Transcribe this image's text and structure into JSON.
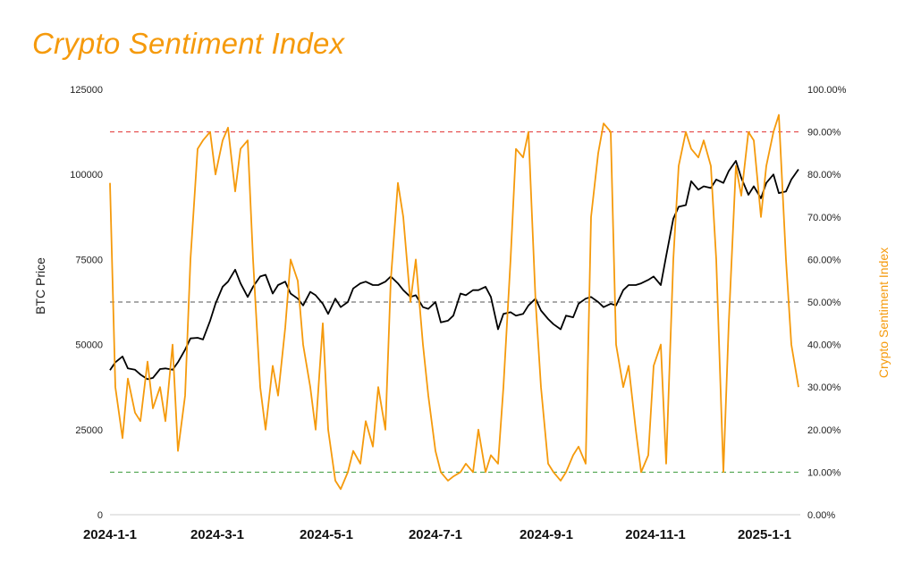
{
  "chart_data": {
    "type": "line",
    "title": "Crypto Sentiment Index",
    "ylabel_left": "BTC Price",
    "ylabel_right": "Crypto Sentiment Index",
    "ylim_left": [
      0,
      125000
    ],
    "ylim_right": [
      0,
      100
    ],
    "x_range": [
      "2024-01-01",
      "2025-01-21"
    ],
    "y_ticks_left": [
      "0",
      "25000",
      "50000",
      "75000",
      "100000",
      "125000"
    ],
    "y_ticks_right": [
      "0.00%",
      "10.00%",
      "20.00%",
      "30.00%",
      "40.00%",
      "50.00%",
      "60.00%",
      "70.00%",
      "80.00%",
      "90.00%",
      "100.00%"
    ],
    "x_ticks": [
      "2024-1-1",
      "2024-3-1",
      "2024-5-1",
      "2024-7-1",
      "2024-9-1",
      "2024-11-1",
      "2025-1-1"
    ],
    "colors": {
      "price": "#000000",
      "sentiment": "#f59a0c",
      "upper_ref": "#e03030",
      "mid_ref": "#555555",
      "lower_ref": "#3a9a3a"
    },
    "reference_lines_percent": [
      90,
      50,
      10
    ],
    "grid": false,
    "series": [
      {
        "axis": "left",
        "dates": [
          "2024-01-01",
          "2024-01-04",
          "2024-01-08",
          "2024-01-11",
          "2024-01-15",
          "2024-01-18",
          "2024-01-22",
          "2024-01-25",
          "2024-01-29",
          "2024-02-01",
          "2024-02-05",
          "2024-02-08",
          "2024-02-12",
          "2024-02-15",
          "2024-02-19",
          "2024-02-22",
          "2024-02-26",
          "2024-02-29",
          "2024-03-04",
          "2024-03-07",
          "2024-03-11",
          "2024-03-14",
          "2024-03-18",
          "2024-03-21",
          "2024-03-25",
          "2024-03-28",
          "2024-04-01",
          "2024-04-04",
          "2024-04-08",
          "2024-04-11",
          "2024-04-15",
          "2024-04-18",
          "2024-04-22",
          "2024-04-25",
          "2024-04-29",
          "2024-05-02",
          "2024-05-06",
          "2024-05-09",
          "2024-05-13",
          "2024-05-16",
          "2024-05-20",
          "2024-05-23",
          "2024-05-27",
          "2024-05-30",
          "2024-06-03",
          "2024-06-06",
          "2024-06-10",
          "2024-06-13",
          "2024-06-17",
          "2024-06-20",
          "2024-06-24",
          "2024-06-27",
          "2024-07-01",
          "2024-07-04",
          "2024-07-08",
          "2024-07-11",
          "2024-07-15",
          "2024-07-18",
          "2024-07-22",
          "2024-07-25",
          "2024-07-29",
          "2024-08-01",
          "2024-08-05",
          "2024-08-08",
          "2024-08-12",
          "2024-08-15",
          "2024-08-19",
          "2024-08-22",
          "2024-08-26",
          "2024-08-29",
          "2024-09-02",
          "2024-09-05",
          "2024-09-09",
          "2024-09-12",
          "2024-09-16",
          "2024-09-19",
          "2024-09-23",
          "2024-09-26",
          "2024-09-30",
          "2024-10-03",
          "2024-10-07",
          "2024-10-10",
          "2024-10-14",
          "2024-10-17",
          "2024-10-21",
          "2024-10-24",
          "2024-10-28",
          "2024-10-31",
          "2024-11-04",
          "2024-11-07",
          "2024-11-11",
          "2024-11-14",
          "2024-11-18",
          "2024-11-21",
          "2024-11-25",
          "2024-11-28",
          "2024-12-02",
          "2024-12-05",
          "2024-12-09",
          "2024-12-12",
          "2024-12-16",
          "2024-12-19",
          "2024-12-23",
          "2024-12-26",
          "2024-12-30",
          "2025-01-02",
          "2025-01-06",
          "2025-01-09",
          "2025-01-13",
          "2025-01-16",
          "2025-01-20"
        ],
        "values": [
          42500,
          44800,
          46500,
          43000,
          42600,
          41200,
          39800,
          40200,
          42800,
          43000,
          42600,
          44800,
          48500,
          51800,
          52000,
          51500,
          57000,
          62000,
          67000,
          68500,
          72000,
          68000,
          64000,
          67000,
          70000,
          70500,
          65000,
          67500,
          68500,
          65000,
          63500,
          61500,
          65500,
          64500,
          62000,
          59000,
          63500,
          61000,
          62500,
          66500,
          68000,
          68500,
          67500,
          67500,
          68500,
          70000,
          68000,
          66000,
          64000,
          64500,
          61000,
          60500,
          62500,
          56500,
          57000,
          58500,
          65000,
          64500,
          66000,
          66000,
          67000,
          64000,
          54500,
          59000,
          59500,
          58500,
          59000,
          61500,
          63500,
          60000,
          57500,
          56000,
          54500,
          58500,
          58000,
          62000,
          63500,
          64000,
          62500,
          61000,
          62000,
          61500,
          66000,
          67500,
          67500,
          68000,
          69000,
          70000,
          67500,
          76000,
          87000,
          90500,
          91000,
          98000,
          95500,
          96500,
          96000,
          98500,
          97500,
          101000,
          104000,
          99000,
          94000,
          96500,
          93000,
          97500,
          100000,
          94500,
          95000,
          98500,
          101500
        ]
      },
      {
        "axis": "right",
        "unit": "percent",
        "dates": [
          "2024-01-01",
          "2024-01-04",
          "2024-01-08",
          "2024-01-11",
          "2024-01-15",
          "2024-01-18",
          "2024-01-22",
          "2024-01-25",
          "2024-01-29",
          "2024-02-01",
          "2024-02-05",
          "2024-02-08",
          "2024-02-12",
          "2024-02-15",
          "2024-02-19",
          "2024-02-22",
          "2024-02-26",
          "2024-02-29",
          "2024-03-04",
          "2024-03-07",
          "2024-03-11",
          "2024-03-14",
          "2024-03-18",
          "2024-03-21",
          "2024-03-25",
          "2024-03-28",
          "2024-04-01",
          "2024-04-04",
          "2024-04-08",
          "2024-04-11",
          "2024-04-15",
          "2024-04-18",
          "2024-04-22",
          "2024-04-25",
          "2024-04-29",
          "2024-05-02",
          "2024-05-06",
          "2024-05-09",
          "2024-05-13",
          "2024-05-16",
          "2024-05-20",
          "2024-05-23",
          "2024-05-27",
          "2024-05-30",
          "2024-06-03",
          "2024-06-06",
          "2024-06-10",
          "2024-06-13",
          "2024-06-17",
          "2024-06-20",
          "2024-06-24",
          "2024-06-27",
          "2024-07-01",
          "2024-07-04",
          "2024-07-08",
          "2024-07-11",
          "2024-07-15",
          "2024-07-18",
          "2024-07-22",
          "2024-07-25",
          "2024-07-29",
          "2024-08-01",
          "2024-08-05",
          "2024-08-08",
          "2024-08-12",
          "2024-08-15",
          "2024-08-19",
          "2024-08-22",
          "2024-08-26",
          "2024-08-29",
          "2024-09-02",
          "2024-09-05",
          "2024-09-09",
          "2024-09-12",
          "2024-09-16",
          "2024-09-19",
          "2024-09-23",
          "2024-09-26",
          "2024-09-30",
          "2024-10-03",
          "2024-10-07",
          "2024-10-10",
          "2024-10-14",
          "2024-10-17",
          "2024-10-21",
          "2024-10-24",
          "2024-10-28",
          "2024-10-31",
          "2024-11-04",
          "2024-11-07",
          "2024-11-11",
          "2024-11-14",
          "2024-11-18",
          "2024-11-21",
          "2024-11-25",
          "2024-11-28",
          "2024-12-02",
          "2024-12-05",
          "2024-12-09",
          "2024-12-12",
          "2024-12-16",
          "2024-12-19",
          "2024-12-23",
          "2024-12-26",
          "2024-12-30",
          "2025-01-02",
          "2025-01-06",
          "2025-01-09",
          "2025-01-13",
          "2025-01-16",
          "2025-01-20"
        ],
        "values": [
          78,
          30,
          18,
          32,
          24,
          22,
          36,
          25,
          30,
          22,
          40,
          15,
          28,
          60,
          86,
          88,
          90,
          80,
          88,
          91,
          76,
          86,
          88,
          60,
          30,
          20,
          35,
          28,
          44,
          60,
          55,
          40,
          30,
          20,
          45,
          20,
          8,
          6,
          10,
          15,
          12,
          22,
          16,
          30,
          20,
          55,
          78,
          70,
          50,
          60,
          40,
          28,
          15,
          10,
          8,
          9,
          10,
          12,
          10,
          20,
          10,
          14,
          12,
          30,
          60,
          86,
          84,
          90,
          50,
          30,
          12,
          10,
          8,
          10,
          14,
          16,
          12,
          70,
          85,
          92,
          90,
          40,
          30,
          35,
          20,
          10,
          14,
          35,
          40,
          12,
          60,
          82,
          90,
          86,
          84,
          88,
          82,
          60,
          10,
          45,
          82,
          75,
          90,
          88,
          70,
          82,
          90,
          94,
          60,
          40,
          30
        ]
      }
    ]
  }
}
